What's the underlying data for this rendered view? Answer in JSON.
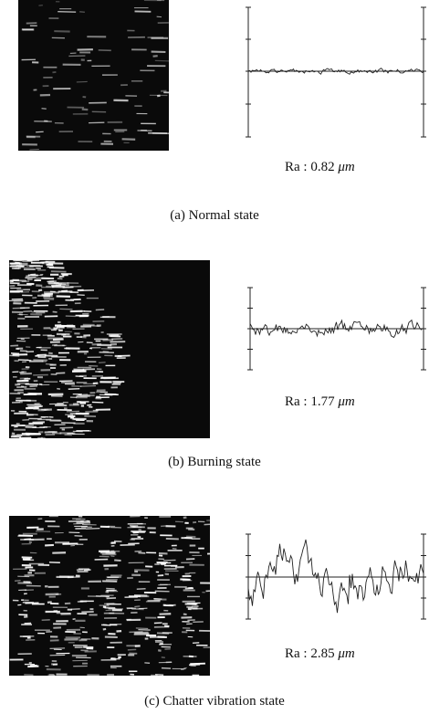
{
  "panels": [
    {
      "ra": "Ra : 0.82",
      "unit": "μm",
      "caption": "(a) Normal state"
    },
    {
      "ra": "Ra : 1.77",
      "unit": "μm",
      "caption": "(b) Burning state"
    },
    {
      "ra": "Ra : 2.85",
      "unit": "μm",
      "caption": "(c) Chatter vibration state"
    }
  ]
}
